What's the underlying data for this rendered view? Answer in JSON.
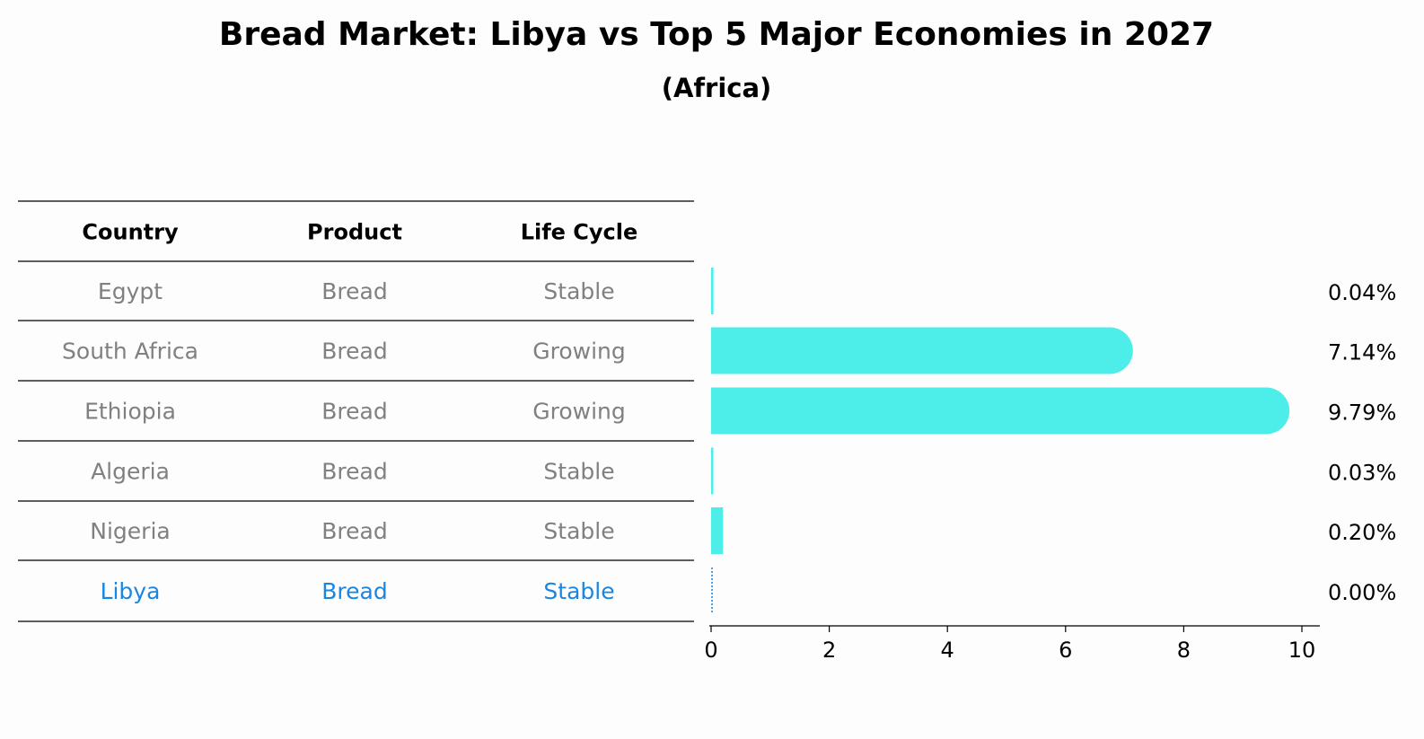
{
  "chart_data": {
    "type": "bar",
    "title": "Bread Market: Libya vs Top 5 Major Economies in 2027",
    "subtitle": "(Africa)",
    "table": {
      "headers": [
        "Country",
        "Product",
        "Life Cycle"
      ],
      "rows": [
        [
          "Egypt",
          "Bread",
          "Stable"
        ],
        [
          "South Africa",
          "Bread",
          "Growing"
        ],
        [
          "Ethiopia",
          "Bread",
          "Growing"
        ],
        [
          "Algeria",
          "Bread",
          "Stable"
        ],
        [
          "Nigeria",
          "Bread",
          "Stable"
        ],
        [
          "Libya",
          "Bread",
          "Stable"
        ]
      ],
      "highlight_row": 5
    },
    "categories": [
      "Egypt",
      "South Africa",
      "Ethiopia",
      "Algeria",
      "Nigeria",
      "Libya"
    ],
    "values": [
      0.04,
      7.14,
      9.79,
      0.03,
      0.2,
      0.0
    ],
    "value_labels": [
      "0.04%",
      "7.14%",
      "9.79%",
      "0.03%",
      "0.20%",
      "0.00%"
    ],
    "xlim": [
      0,
      10
    ],
    "xticks": [
      "0",
      "2",
      "4",
      "6",
      "8",
      "10"
    ],
    "xlabel": "",
    "ylabel": "",
    "bar_color": "#4deeea",
    "highlight_color": "#1a86e0",
    "text_color": "#808080"
  }
}
